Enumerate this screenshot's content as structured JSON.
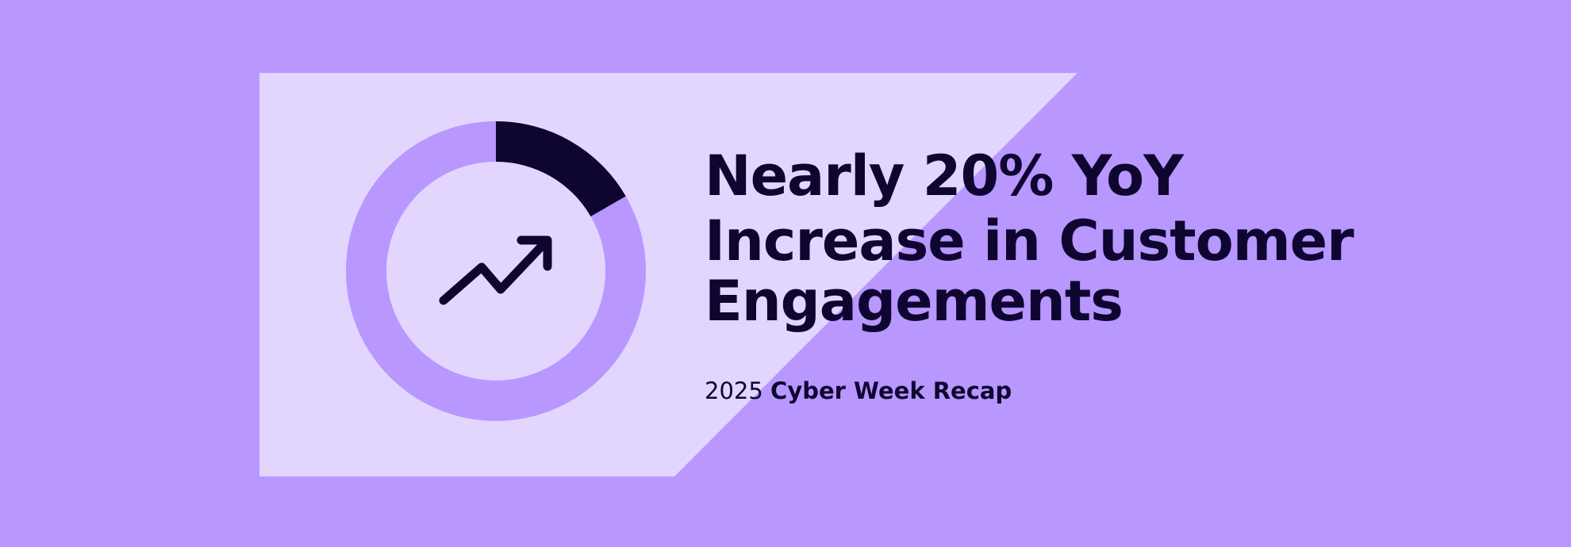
{
  "header": {
    "title_lines": [
      "Nearly 20% YoY",
      "Increase in Customer",
      "Engagements"
    ],
    "subtitle_year": "2025",
    "subtitle_text": "Cyber Week Recap"
  }
}
